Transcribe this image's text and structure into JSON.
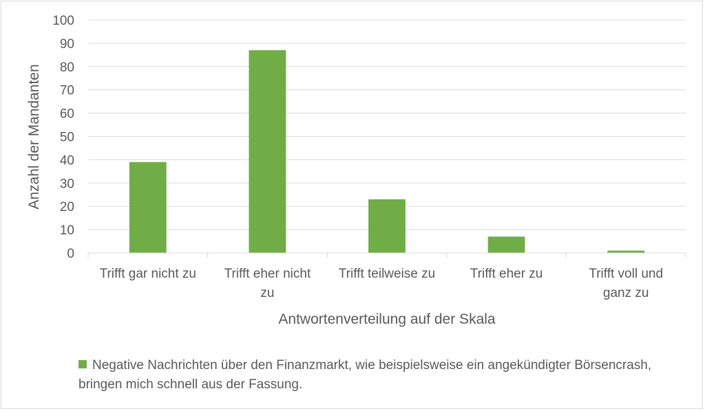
{
  "chart_data": {
    "type": "bar",
    "categories": [
      [
        "Trifft gar nicht zu"
      ],
      [
        "Trifft eher nicht",
        "zu"
      ],
      [
        "Trifft teilweise zu"
      ],
      [
        "Trifft eher zu"
      ],
      [
        "Trifft voll und",
        "ganz zu"
      ]
    ],
    "series": [
      {
        "name": "Negative Nachrichten über den Finanzmarkt, wie beispielsweise ein angekündigter Börsencrash, bringen mich schnell aus der Fassung.",
        "values": [
          39,
          87,
          23,
          7,
          1
        ],
        "color": "#70ad47"
      }
    ],
    "title": "",
    "xlabel": "Antwortenverteilung auf der Skala",
    "ylabel": "Anzahl der Mandanten",
    "ylim": [
      0,
      100
    ],
    "yticks": [
      0,
      10,
      20,
      30,
      40,
      50,
      60,
      70,
      80,
      90,
      100
    ],
    "grid": true,
    "legend": "bottom"
  }
}
